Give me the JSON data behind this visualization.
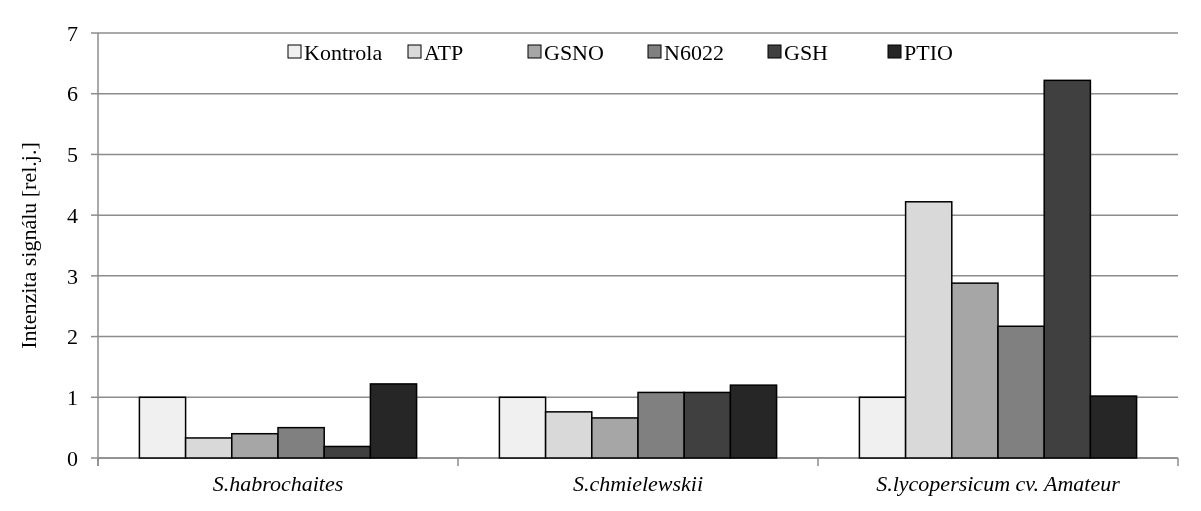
{
  "chart_data": {
    "type": "bar",
    "ylabel": "Intenzita signálu [rel.j.]",
    "categories": [
      "S.habrochaites",
      "S.chmielewskii",
      "S.lycopersicum cv. Amateur"
    ],
    "series": [
      {
        "name": "Kontrola",
        "color": "#f0f0f0",
        "values": [
          1,
          1,
          1
        ]
      },
      {
        "name": "ATP",
        "color": "#d9d9d9",
        "values": [
          0.33,
          0.76,
          4.22
        ]
      },
      {
        "name": "GSNO",
        "color": "#a6a6a6",
        "values": [
          0.4,
          0.66,
          2.88
        ]
      },
      {
        "name": "N6022",
        "color": "#808080",
        "values": [
          0.5,
          1.08,
          2.17
        ]
      },
      {
        "name": "GSH",
        "color": "#404040",
        "values": [
          0.19,
          1.08,
          6.22
        ]
      },
      {
        "name": "PTIO",
        "color": "#262626",
        "values": [
          1.22,
          1.2,
          1.02
        ]
      }
    ],
    "ylim": [
      0,
      7
    ],
    "yticks": [
      0,
      1,
      2,
      3,
      4,
      5,
      6,
      7
    ],
    "grid": "y",
    "legend": "top"
  }
}
